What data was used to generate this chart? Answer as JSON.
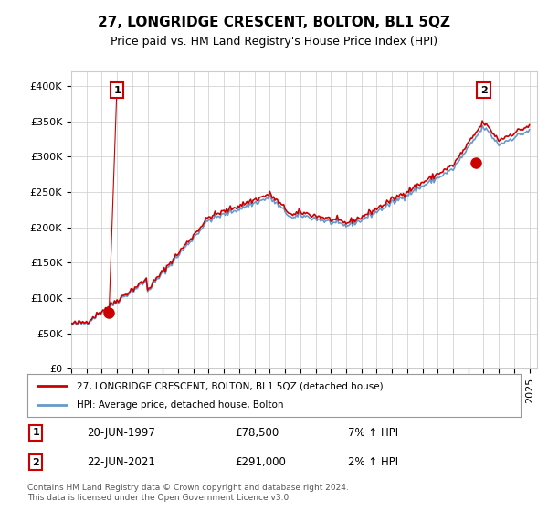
{
  "title": "27, LONGRIDGE CRESCENT, BOLTON, BL1 5QZ",
  "subtitle": "Price paid vs. HM Land Registry's House Price Index (HPI)",
  "ylabel": "",
  "ylim": [
    0,
    420000
  ],
  "yticks": [
    0,
    50000,
    100000,
    150000,
    200000,
    250000,
    300000,
    350000,
    400000
  ],
  "ytick_labels": [
    "£0",
    "£50K",
    "£100K",
    "£150K",
    "£200K",
    "£250K",
    "£300K",
    "£350K",
    "£400K"
  ],
  "hpi_color": "#6699cc",
  "price_color": "#cc0000",
  "marker_color": "#cc0000",
  "marker_bg": "#cc0000",
  "point1_year": 1997.47,
  "point1_value": 78500,
  "point1_label": "1",
  "point2_year": 2021.47,
  "point2_value": 291000,
  "point2_label": "2",
  "legend_price": "27, LONGRIDGE CRESCENT, BOLTON, BL1 5QZ (detached house)",
  "legend_hpi": "HPI: Average price, detached house, Bolton",
  "sale1_date": "20-JUN-1997",
  "sale1_price": "£78,500",
  "sale1_hpi": "7% ↑ HPI",
  "sale2_date": "22-JUN-2021",
  "sale2_price": "£291,000",
  "sale2_hpi": "2% ↑ HPI",
  "footnote": "Contains HM Land Registry data © Crown copyright and database right 2024.\nThis data is licensed under the Open Government Licence v3.0.",
  "bg_color": "#ffffff",
  "grid_color": "#cccccc",
  "title_fontsize": 11,
  "subtitle_fontsize": 9,
  "tick_fontsize": 8
}
